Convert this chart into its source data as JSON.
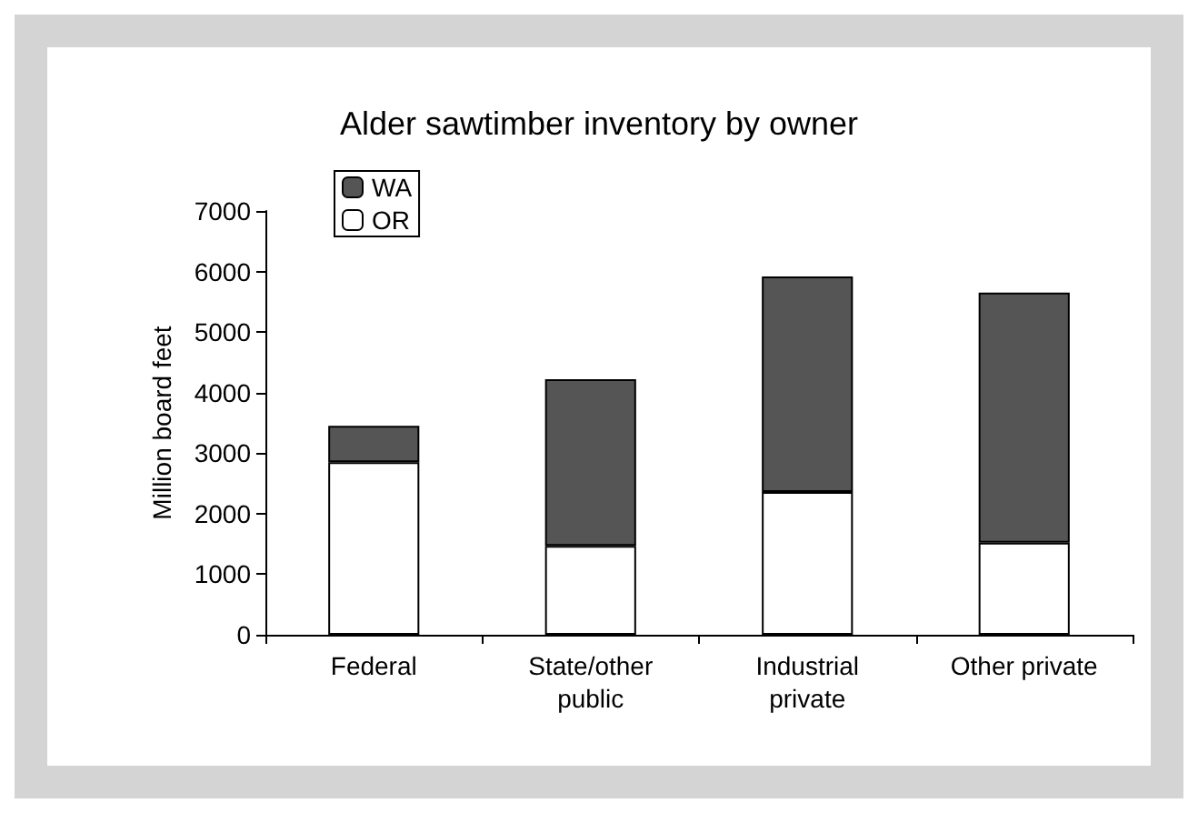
{
  "chart_data": {
    "type": "bar",
    "title": "Alder sawtimber inventory by owner",
    "ylabel": "Million board feet",
    "categories": [
      "Federal",
      "State/other\npublic",
      "Industrial\nprivate",
      "Other private"
    ],
    "stacked": true,
    "series": [
      {
        "name": "OR",
        "color": "#ffffff",
        "values": [
          2850,
          1470,
          2360,
          1520
        ]
      },
      {
        "name": "WA",
        "color": "#555555",
        "values": [
          600,
          2750,
          3560,
          4130
        ]
      }
    ],
    "ylim": [
      0,
      7000
    ],
    "yticks": [
      0,
      1000,
      2000,
      3000,
      4000,
      5000,
      6000,
      7000
    ],
    "grid": false,
    "legend": "top left"
  }
}
